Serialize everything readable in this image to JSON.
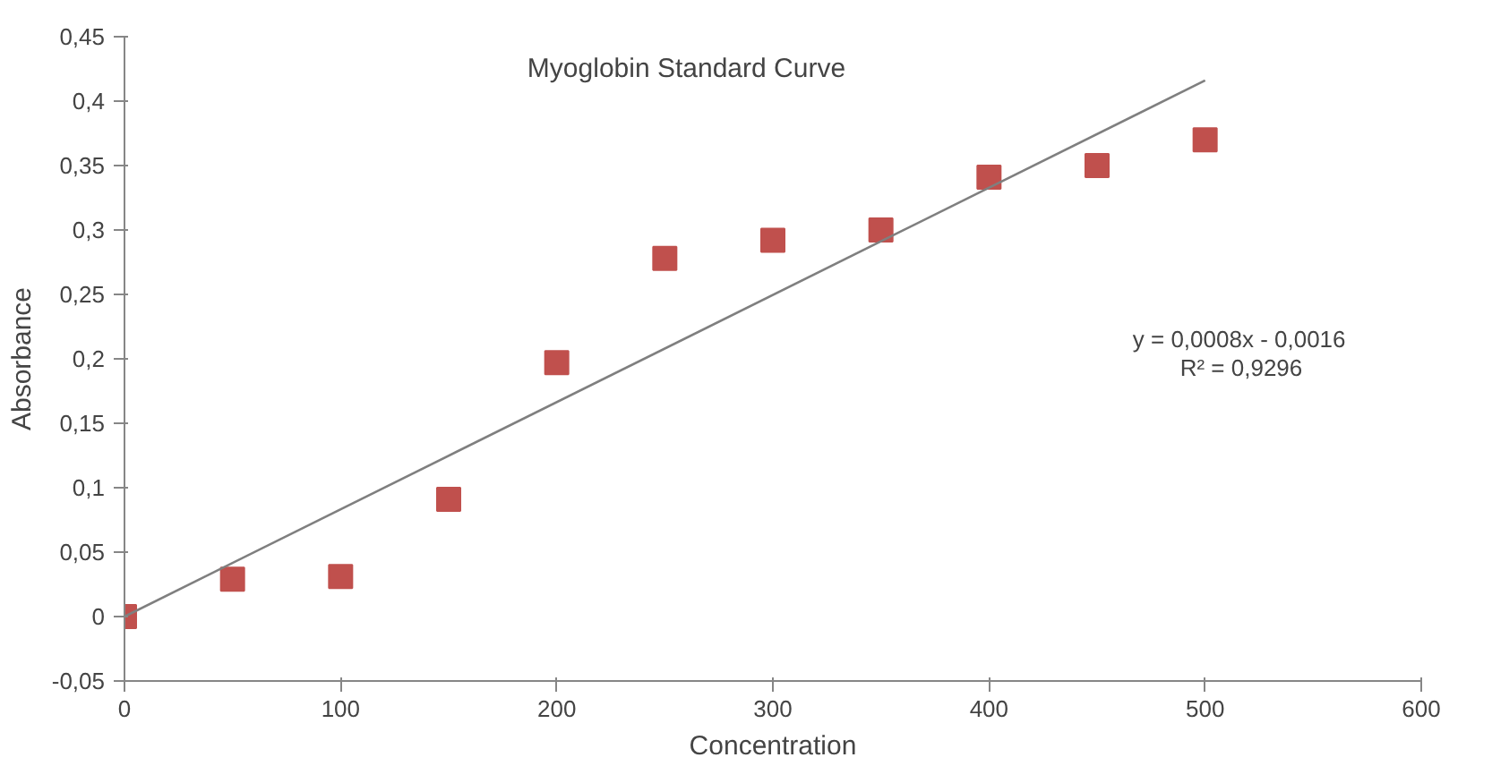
{
  "chart_data": {
    "type": "scatter",
    "title": "Myoglobin Standard Curve",
    "xlabel": "Concentration",
    "ylabel": "Absorbance",
    "xlim": [
      0,
      600
    ],
    "xticks": [
      0,
      100,
      200,
      300,
      400,
      500,
      600
    ],
    "ylim": [
      -0.05,
      0.45
    ],
    "yticks": [
      {
        "value": -0.05,
        "label": "-0,05"
      },
      {
        "value": 0,
        "label": "0"
      },
      {
        "value": 0.05,
        "label": "0,05"
      },
      {
        "value": 0.1,
        "label": "0,1"
      },
      {
        "value": 0.15,
        "label": "0,15"
      },
      {
        "value": 0.2,
        "label": "0,2"
      },
      {
        "value": 0.25,
        "label": "0,25"
      },
      {
        "value": 0.3,
        "label": "0,3"
      },
      {
        "value": 0.35,
        "label": "0,35"
      },
      {
        "value": 0.4,
        "label": "0,4"
      },
      {
        "value": 0.45,
        "label": "0,45"
      }
    ],
    "marker": "square",
    "series": [
      {
        "color": "#c0504d",
        "x": [
          0,
          50,
          100,
          150,
          200,
          250,
          300,
          350,
          400,
          450,
          500
        ],
        "values": [
          0,
          0.029,
          0.031,
          0.091,
          0.197,
          0.278,
          0.292,
          0.3,
          0.341,
          0.35,
          0.37
        ]
      },
      {
        "type": "line",
        "marker": "none",
        "color": "#7f7f7f",
        "x": [
          0,
          500
        ],
        "values": [
          0,
          0.416
        ]
      }
    ],
    "annotations": [
      "y = 0,0008x - 0,0016",
      "R² = 0,9296"
    ]
  }
}
